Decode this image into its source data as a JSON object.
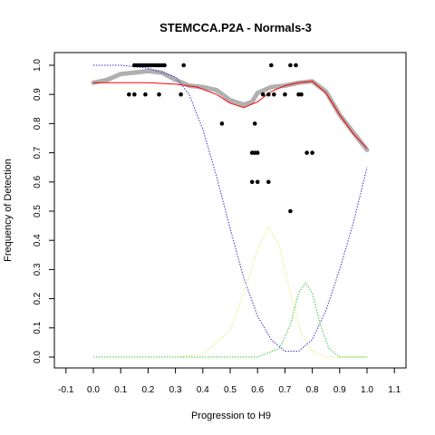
{
  "chart_data": {
    "type": "scatter",
    "title": "STEMCCA.P2A - Normals-3",
    "xlabel": "Progression to H9",
    "ylabel": "Frequency of Detection",
    "xlim": [
      -0.1,
      1.1
    ],
    "ylim": [
      0.0,
      1.0
    ],
    "xticks": [
      "-0.1",
      "0.0",
      "0.1",
      "0.2",
      "0.3",
      "0.4",
      "0.5",
      "0.6",
      "0.7",
      "0.8",
      "0.9",
      "1.0",
      "1.1"
    ],
    "yticks": [
      "0.0",
      "0.1",
      "0.2",
      "0.3",
      "0.4",
      "0.5",
      "0.6",
      "0.7",
      "0.8",
      "0.9",
      "1.0"
    ],
    "grid": false,
    "legend": "none",
    "colors": {
      "points": "#000000",
      "smooth": "#b0b0b0",
      "fit": "#ff0000",
      "blue_curve": "#3333cc",
      "yellow_curve": "#e8e870",
      "green_curve": "#33cc33"
    },
    "points": [
      [
        0.13,
        0.9
      ],
      [
        0.15,
        0.9
      ],
      [
        0.15,
        1.0
      ],
      [
        0.16,
        1.0
      ],
      [
        0.17,
        1.0
      ],
      [
        0.18,
        1.0
      ],
      [
        0.19,
        1.0
      ],
      [
        0.2,
        1.0
      ],
      [
        0.21,
        1.0
      ],
      [
        0.22,
        1.0
      ],
      [
        0.23,
        1.0
      ],
      [
        0.24,
        1.0
      ],
      [
        0.25,
        1.0
      ],
      [
        0.26,
        1.0
      ],
      [
        0.19,
        0.9
      ],
      [
        0.24,
        0.9
      ],
      [
        0.32,
        0.9
      ],
      [
        0.33,
        1.0
      ],
      [
        0.47,
        0.8
      ],
      [
        0.58,
        0.6
      ],
      [
        0.58,
        0.7
      ],
      [
        0.59,
        0.7
      ],
      [
        0.59,
        0.8
      ],
      [
        0.6,
        0.7
      ],
      [
        0.6,
        0.6
      ],
      [
        0.62,
        0.9
      ],
      [
        0.64,
        0.9
      ],
      [
        0.64,
        0.6
      ],
      [
        0.65,
        1.0
      ],
      [
        0.66,
        0.9
      ],
      [
        0.7,
        0.9
      ],
      [
        0.72,
        1.0
      ],
      [
        0.72,
        0.5
      ],
      [
        0.74,
        1.0
      ],
      [
        0.75,
        0.9
      ],
      [
        0.76,
        0.9
      ],
      [
        0.78,
        0.7
      ],
      [
        0.8,
        0.7
      ]
    ],
    "smooth_series": [
      [
        0.0,
        0.94
      ],
      [
        0.05,
        0.95
      ],
      [
        0.1,
        0.97
      ],
      [
        0.15,
        0.975
      ],
      [
        0.2,
        0.98
      ],
      [
        0.25,
        0.975
      ],
      [
        0.3,
        0.95
      ],
      [
        0.35,
        0.93
      ],
      [
        0.4,
        0.925
      ],
      [
        0.45,
        0.915
      ],
      [
        0.5,
        0.88
      ],
      [
        0.55,
        0.865
      ],
      [
        0.58,
        0.875
      ],
      [
        0.6,
        0.905
      ],
      [
        0.65,
        0.925
      ],
      [
        0.7,
        0.93
      ],
      [
        0.75,
        0.94
      ],
      [
        0.8,
        0.945
      ],
      [
        0.85,
        0.91
      ],
      [
        0.9,
        0.83
      ],
      [
        0.95,
        0.77
      ],
      [
        1.0,
        0.71
      ]
    ],
    "fit_series": [
      [
        0.0,
        0.94
      ],
      [
        0.1,
        0.94
      ],
      [
        0.2,
        0.94
      ],
      [
        0.3,
        0.935
      ],
      [
        0.38,
        0.925
      ],
      [
        0.45,
        0.9
      ],
      [
        0.5,
        0.87
      ],
      [
        0.55,
        0.855
      ],
      [
        0.6,
        0.875
      ],
      [
        0.65,
        0.91
      ],
      [
        0.7,
        0.93
      ],
      [
        0.75,
        0.94
      ],
      [
        0.8,
        0.945
      ],
      [
        0.85,
        0.905
      ],
      [
        0.9,
        0.83
      ],
      [
        0.95,
        0.765
      ],
      [
        1.0,
        0.715
      ]
    ],
    "blue_curve": [
      [
        0.0,
        1.0
      ],
      [
        0.1,
        1.0
      ],
      [
        0.2,
        0.99
      ],
      [
        0.3,
        0.96
      ],
      [
        0.35,
        0.9
      ],
      [
        0.4,
        0.78
      ],
      [
        0.45,
        0.62
      ],
      [
        0.5,
        0.44
      ],
      [
        0.55,
        0.27
      ],
      [
        0.6,
        0.14
      ],
      [
        0.65,
        0.06
      ],
      [
        0.7,
        0.02
      ],
      [
        0.75,
        0.02
      ],
      [
        0.8,
        0.06
      ],
      [
        0.85,
        0.16
      ],
      [
        0.9,
        0.3
      ],
      [
        0.95,
        0.46
      ],
      [
        1.0,
        0.65
      ]
    ],
    "yellow_curve": [
      [
        0.0,
        0.0
      ],
      [
        0.3,
        0.0
      ],
      [
        0.4,
        0.01
      ],
      [
        0.5,
        0.09
      ],
      [
        0.55,
        0.22
      ],
      [
        0.6,
        0.37
      ],
      [
        0.64,
        0.445
      ],
      [
        0.68,
        0.38
      ],
      [
        0.72,
        0.22
      ],
      [
        0.76,
        0.08
      ],
      [
        0.8,
        0.02
      ],
      [
        0.85,
        0.0
      ],
      [
        1.0,
        0.0
      ]
    ],
    "green_curve": [
      [
        0.0,
        0.0
      ],
      [
        0.6,
        0.0
      ],
      [
        0.68,
        0.03
      ],
      [
        0.72,
        0.11
      ],
      [
        0.75,
        0.22
      ],
      [
        0.775,
        0.255
      ],
      [
        0.8,
        0.22
      ],
      [
        0.83,
        0.11
      ],
      [
        0.86,
        0.03
      ],
      [
        0.9,
        0.0
      ],
      [
        1.0,
        0.0
      ]
    ]
  }
}
